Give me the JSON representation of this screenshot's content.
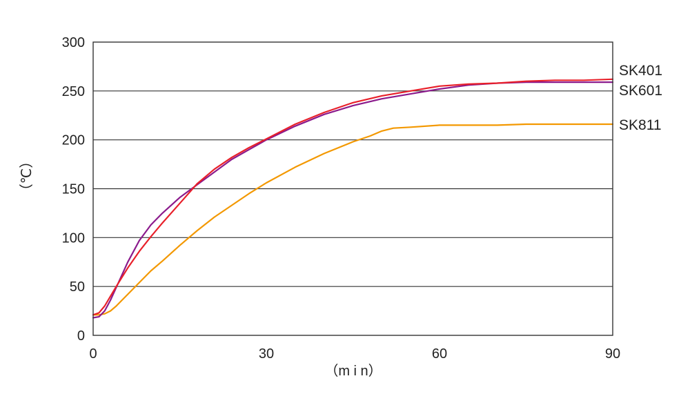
{
  "chart_data": {
    "type": "line",
    "title": "",
    "xlabel": "（m i n）",
    "ylabel": "（℃）",
    "xlim": [
      0,
      90
    ],
    "ylim": [
      0,
      300
    ],
    "xticks": [
      0,
      30,
      60,
      90
    ],
    "yticks": [
      0,
      50,
      100,
      150,
      200,
      250,
      300
    ],
    "grid": "horizontal",
    "legend": "right, at line ends",
    "series": [
      {
        "name": "SK401",
        "color": "#e8202a",
        "x": [
          0,
          1,
          2,
          3,
          4,
          6,
          8,
          10,
          12,
          15,
          18,
          21,
          24,
          27,
          30,
          35,
          40,
          45,
          50,
          55,
          60,
          65,
          70,
          75,
          80,
          85,
          90
        ],
        "y": [
          21,
          23,
          30,
          40,
          50,
          69,
          86,
          101,
          115,
          135,
          155,
          170,
          182,
          192,
          201,
          216,
          228,
          238,
          245,
          250,
          255,
          257,
          258,
          260,
          261,
          261,
          262
        ]
      },
      {
        "name": "SK601",
        "color": "#8b1a8c",
        "x": [
          0,
          1,
          2,
          3,
          4,
          6,
          8,
          10,
          12,
          15,
          18,
          21,
          24,
          27,
          30,
          35,
          40,
          45,
          50,
          55,
          60,
          65,
          70,
          75,
          80,
          85,
          90
        ],
        "y": [
          18,
          19,
          25,
          36,
          49,
          75,
          97,
          113,
          125,
          141,
          154,
          167,
          180,
          190,
          200,
          214,
          226,
          235,
          242,
          247,
          252,
          256,
          258,
          259,
          259,
          259,
          259
        ]
      },
      {
        "name": "SK811",
        "color": "#f39800",
        "x": [
          0,
          1,
          2,
          3,
          4,
          5,
          6,
          8,
          10,
          12,
          15,
          18,
          21,
          24,
          27,
          30,
          35,
          40,
          45,
          48,
          50,
          52,
          55,
          60,
          65,
          70,
          75,
          80,
          85,
          90
        ],
        "y": [
          21,
          21,
          22,
          25,
          30,
          36,
          42,
          54,
          66,
          76,
          92,
          107,
          121,
          133,
          145,
          156,
          172,
          186,
          198,
          204,
          209,
          212,
          213,
          215,
          215,
          215,
          216,
          216,
          216,
          216
        ]
      }
    ]
  }
}
